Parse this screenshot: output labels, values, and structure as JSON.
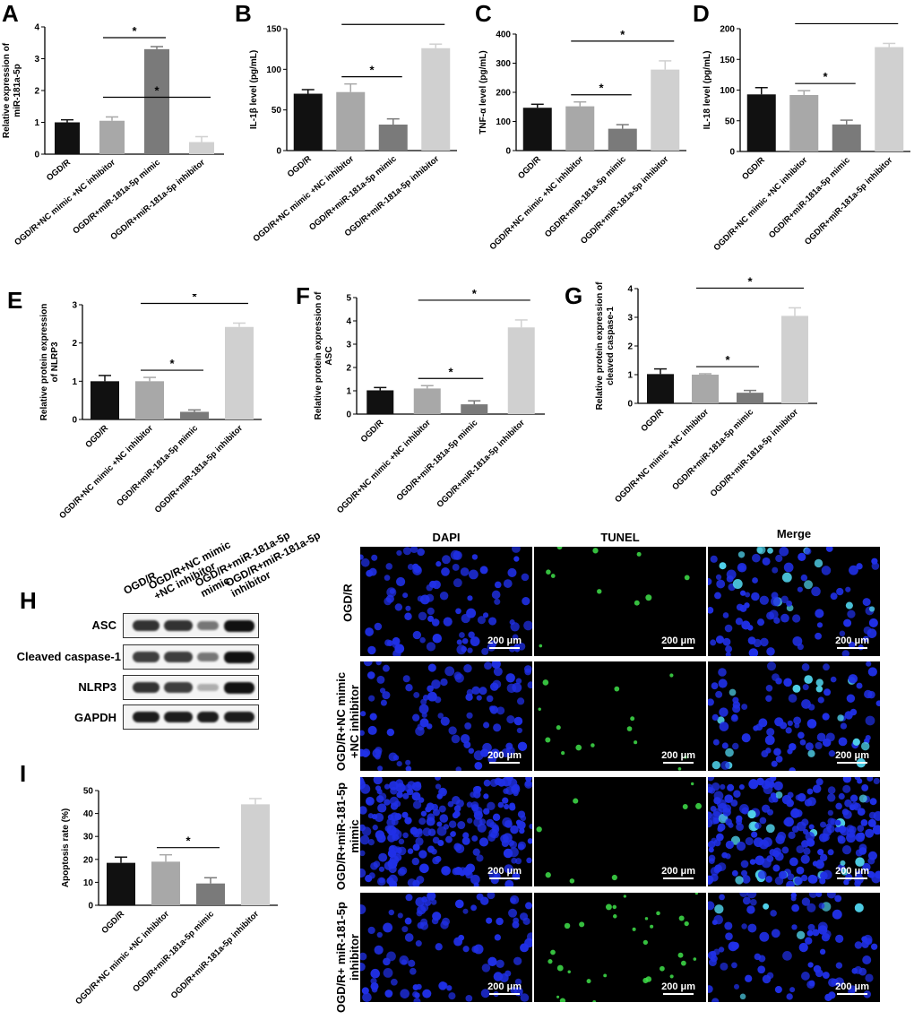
{
  "letters": {
    "A": "A",
    "B": "B",
    "C": "C",
    "D": "D",
    "E": "E",
    "F": "F",
    "G": "G",
    "H": "H",
    "I": "I"
  },
  "star": "*",
  "colors": [
    "#111111",
    "#a8a8a8",
    "#7a7a7a",
    "#d0d0d0"
  ],
  "chart_data": [
    {
      "id": "A",
      "type": "bar",
      "ylabel": "Relative expression of\nmiR-181a-5p",
      "ylim": [
        0,
        4
      ],
      "yticks": [
        0,
        1,
        2,
        3,
        4
      ],
      "categories": [
        "OGD/R",
        "OGD/R+NC mimic +NC inhibitor",
        "OGD/R+miR-181a-5p mimic",
        "OGD/R+miR-181a-5p inhibitor"
      ],
      "values": [
        1.0,
        1.05,
        3.3,
        0.38
      ],
      "errors": [
        0.08,
        0.12,
        0.08,
        0.17
      ],
      "sig": [
        [
          1,
          2
        ],
        [
          1,
          3
        ]
      ]
    },
    {
      "id": "B",
      "type": "bar",
      "ylabel": "IL-1β level (pg/mL)",
      "ylim": [
        0,
        150
      ],
      "yticks": [
        0,
        50,
        100,
        150
      ],
      "categories": [
        "OGD/R",
        "OGD/R+NC mimic +NC inhibitor",
        "OGD/R+miR-181a-5p mimic",
        "OGD/R+miR-181a-5p inhibitor"
      ],
      "values": [
        70,
        72,
        32,
        126
      ],
      "errors": [
        5,
        10,
        7,
        5
      ],
      "sig": [
        [
          1,
          2
        ],
        [
          1,
          3
        ]
      ]
    },
    {
      "id": "C",
      "type": "bar",
      "ylabel": "TNF-α level (pg/mL)",
      "ylim": [
        0,
        400
      ],
      "yticks": [
        0,
        100,
        200,
        300,
        400
      ],
      "categories": [
        "OGD/R",
        "OGD/R+NC mimic +NC inhibitor",
        "OGD/R+miR-181a-5p mimic",
        "OGD/R+miR-181a-5p inhibitor"
      ],
      "values": [
        147,
        152,
        75,
        278
      ],
      "errors": [
        12,
        15,
        14,
        30
      ],
      "sig": [
        [
          1,
          2
        ],
        [
          1,
          3
        ]
      ]
    },
    {
      "id": "D",
      "type": "bar",
      "ylabel": "IL-18 level (pg/mL)",
      "ylim": [
        0,
        200
      ],
      "yticks": [
        0,
        50,
        100,
        150,
        200
      ],
      "categories": [
        "OGD/R",
        "OGD/R+NC mimic +NC inhibitor",
        "OGD/R+miR-181a-5p mimic",
        "OGD/R+miR-181a-5p inhibitor"
      ],
      "values": [
        93,
        92,
        44,
        170
      ],
      "errors": [
        11,
        7,
        7,
        6
      ],
      "sig": [
        [
          1,
          2
        ],
        [
          1,
          3
        ]
      ]
    },
    {
      "id": "E",
      "type": "bar",
      "ylabel": "Relative protein expression\nof NLRP3",
      "ylim": [
        0,
        3
      ],
      "yticks": [
        0,
        1,
        2,
        3
      ],
      "categories": [
        "OGD/R",
        "OGD/R+NC mimic +NC inhibitor",
        "OGD/R+miR-181a-5p mimic",
        "OGD/R+miR-181a-5p inhibitor"
      ],
      "values": [
        1.0,
        1.0,
        0.2,
        2.42
      ],
      "errors": [
        0.15,
        0.1,
        0.05,
        0.1
      ],
      "sig": [
        [
          1,
          2
        ],
        [
          1,
          3
        ]
      ]
    },
    {
      "id": "F",
      "type": "bar",
      "ylabel": "Relative protein expression of\nASC",
      "ylim": [
        0,
        5
      ],
      "yticks": [
        0,
        1,
        2,
        3,
        4,
        5
      ],
      "categories": [
        "OGD/R",
        "OGD/R+NC mimic +NC inhibitor",
        "OGD/R+miR-181a-5p mimic",
        "OGD/R+miR-181a-5p inhibitor"
      ],
      "values": [
        1.02,
        1.1,
        0.42,
        3.72
      ],
      "errors": [
        0.12,
        0.12,
        0.15,
        0.32
      ],
      "sig": [
        [
          1,
          2
        ],
        [
          1,
          3
        ]
      ]
    },
    {
      "id": "G",
      "type": "bar",
      "ylabel": "Relative protein expression of\ncleaved caspase-1",
      "ylim": [
        0,
        4
      ],
      "yticks": [
        0,
        1,
        2,
        3,
        4
      ],
      "categories": [
        "OGD/R",
        "OGD/R+NC mimic +NC inhibitor",
        "OGD/R+miR-181a-5p mimic",
        "OGD/R+miR-181a-5p inhibitor"
      ],
      "values": [
        1.02,
        1.0,
        0.37,
        3.05
      ],
      "errors": [
        0.18,
        0.03,
        0.08,
        0.28
      ],
      "sig": [
        [
          1,
          2
        ],
        [
          1,
          3
        ]
      ]
    },
    {
      "id": "I",
      "type": "bar",
      "ylabel": "Apoptosis rate (%)",
      "ylim": [
        0,
        50
      ],
      "yticks": [
        0,
        10,
        20,
        30,
        40,
        50
      ],
      "categories": [
        "OGD/R",
        "OGD/R+NC mimic +NC inhibitor",
        "OGD/R+miR-181a-5p mimic",
        "OGD/R+miR-181a-5p inhibitor"
      ],
      "values": [
        18.5,
        19,
        9.5,
        44
      ],
      "errors": [
        2.5,
        3,
        2.5,
        2.5
      ],
      "sig": [
        [
          1,
          2
        ],
        [
          1,
          3
        ]
      ]
    }
  ],
  "western": {
    "columns": [
      "OGD/R",
      "OGD/R+NC mimic\n+NC inhibitor",
      "OGD/R+miR-181a-5p\nmimic",
      "OGD/R+miR-181a-5p\ninhibitor"
    ],
    "rows": [
      {
        "label": "ASC",
        "intensity": [
          0.85,
          0.85,
          0.55,
          1.0
        ]
      },
      {
        "label": "Cleaved caspase-1",
        "intensity": [
          0.8,
          0.8,
          0.55,
          1.0
        ]
      },
      {
        "label": "NLRP3",
        "intensity": [
          0.85,
          0.8,
          0.3,
          1.0
        ]
      },
      {
        "label": "GAPDH",
        "intensity": [
          0.95,
          0.95,
          0.95,
          0.95
        ]
      }
    ]
  },
  "tunel": {
    "col_titles": [
      "DAPI",
      "TUNEL",
      "Merge"
    ],
    "row_labels": [
      "OGD/R",
      "OGD/R+NC mimic\n+NC inhibitor",
      "OGD/R+miR-181-5p\nmimic",
      "OGD/R+ miR-181-5p\ninhibitor"
    ],
    "scale": "200 μm"
  }
}
